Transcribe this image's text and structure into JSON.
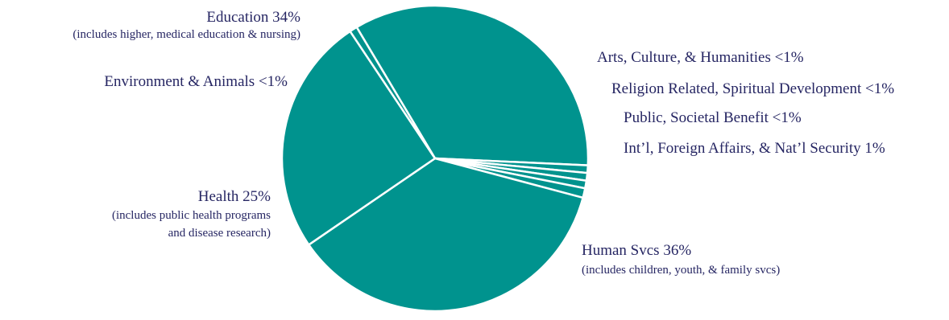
{
  "colors": {
    "slice": "#00938e",
    "separator": "#ffffff",
    "label_text": "#262663"
  },
  "chart_data": {
    "type": "pie",
    "legend": "none",
    "slices": [
      {
        "label": "Education 34%",
        "sublabel": [
          "(includes higher, medical education & nursing)"
        ],
        "value": 34
      },
      {
        "label": "Arts, Culture, & Humanities <1%",
        "sublabel": [],
        "value": 0.8
      },
      {
        "label": "Religion Related, Spiritual Development <1%",
        "sublabel": [],
        "value": 0.8
      },
      {
        "label": "Public, Societal Benefit <1%",
        "sublabel": [],
        "value": 0.8
      },
      {
        "label": "Int’l, Foreign Affairs, & Nat’l Security 1%",
        "sublabel": [],
        "value": 1
      },
      {
        "label": "Human Svcs 36%",
        "sublabel": [
          "(includes children, youth, & family svcs)"
        ],
        "value": 36
      },
      {
        "label": "Health 25%",
        "sublabel": [
          "(includes public health programs",
          "and disease research)"
        ],
        "value": 25
      },
      {
        "label": "Environment & Animals <1%",
        "sublabel": [],
        "value": 0.8
      }
    ]
  }
}
